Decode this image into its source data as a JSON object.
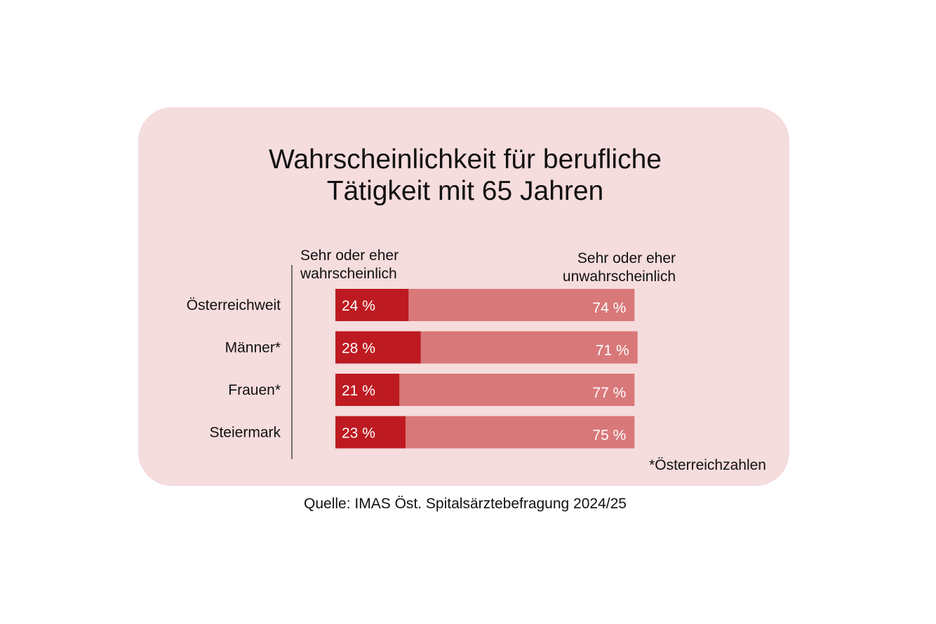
{
  "colors": {
    "background": "#f5dcdd",
    "likely": "#be1a21",
    "unlikely": "#d97879",
    "text": "#111111",
    "bar_label": "#ffffff"
  },
  "title_lines": [
    "Wahrscheinlichkeit für berufliche",
    "Tätigkeit mit 65 Jahren"
  ],
  "legend": {
    "likely_lines": [
      "Sehr oder eher",
      "wahrscheinlich"
    ],
    "unlikely_lines": [
      "Sehr oder eher",
      "unwahrscheinlich"
    ]
  },
  "footnote": "*Österreichzahlen",
  "source": "Quelle: IMAS Öst. Spitalsärztebefragung 2024/25",
  "chart_data": {
    "type": "bar",
    "orientation": "horizontal",
    "stacked": true,
    "categories": [
      "Österreichweit",
      "Männer*",
      "Frauen*",
      "Steiermark"
    ],
    "series": [
      {
        "name": "Sehr oder eher wahrscheinlich",
        "values": [
          24,
          28,
          21,
          23
        ],
        "labels": [
          "24 %",
          "28 %",
          "21 %",
          "23 %"
        ]
      },
      {
        "name": "Sehr oder eher unwahrscheinlich",
        "values": [
          74,
          71,
          77,
          75
        ],
        "labels": [
          "74 %",
          "71 %",
          "77 %",
          "75 %"
        ]
      }
    ],
    "xlim": [
      0,
      100
    ],
    "grid": false,
    "legend_position": "top"
  }
}
